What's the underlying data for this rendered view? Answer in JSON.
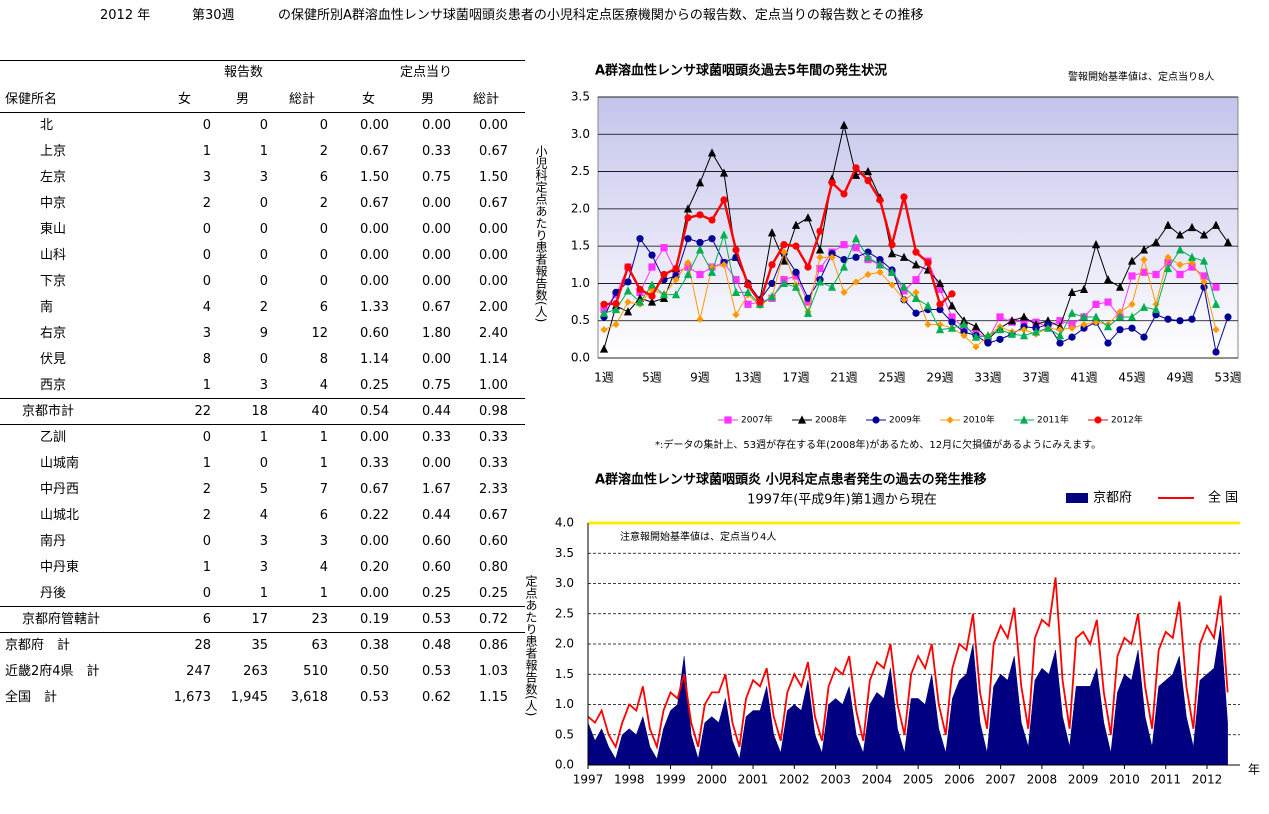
{
  "header": {
    "year": "2012 年",
    "week": "第30週",
    "title": "の保健所別A群溶血性レンサ球菌咽頭炎患者の小児科定点医療機関からの報告数、定点当りの報告数とその推移"
  },
  "table": {
    "group_headers": [
      "報告数",
      "定点当り"
    ],
    "columns": [
      "保健所名",
      "女",
      "男",
      "総計",
      "女",
      "男",
      "総計"
    ],
    "rows": [
      [
        "北",
        "0",
        "0",
        "0",
        "0.00",
        "0.00",
        "0.00"
      ],
      [
        "上京",
        "1",
        "1",
        "2",
        "0.67",
        "0.33",
        "0.67"
      ],
      [
        "左京",
        "3",
        "3",
        "6",
        "1.50",
        "0.75",
        "1.50"
      ],
      [
        "中京",
        "2",
        "0",
        "2",
        "0.67",
        "0.00",
        "0.67"
      ],
      [
        "東山",
        "0",
        "0",
        "0",
        "0.00",
        "0.00",
        "0.00"
      ],
      [
        "山科",
        "0",
        "0",
        "0",
        "0.00",
        "0.00",
        "0.00"
      ],
      [
        "下京",
        "0",
        "0",
        "0",
        "0.00",
        "0.00",
        "0.00"
      ],
      [
        "南",
        "4",
        "2",
        "6",
        "1.33",
        "0.67",
        "2.00"
      ],
      [
        "右京",
        "3",
        "9",
        "12",
        "0.60",
        "1.80",
        "2.40"
      ],
      [
        "伏見",
        "8",
        "0",
        "8",
        "1.14",
        "0.00",
        "1.14"
      ],
      [
        "西京",
        "1",
        "3",
        "4",
        "0.25",
        "0.75",
        "1.00"
      ],
      [
        "京都市計",
        "22",
        "18",
        "40",
        "0.54",
        "0.44",
        "0.98"
      ],
      [
        "乙訓",
        "0",
        "1",
        "1",
        "0.00",
        "0.33",
        "0.33"
      ],
      [
        "山城南",
        "1",
        "0",
        "1",
        "0.33",
        "0.00",
        "0.33"
      ],
      [
        "中丹西",
        "2",
        "5",
        "7",
        "0.67",
        "1.67",
        "2.33"
      ],
      [
        "山城北",
        "2",
        "4",
        "6",
        "0.22",
        "0.44",
        "0.67"
      ],
      [
        "南丹",
        "0",
        "3",
        "3",
        "0.00",
        "0.60",
        "0.60"
      ],
      [
        "中丹東",
        "1",
        "3",
        "4",
        "0.20",
        "0.60",
        "0.80"
      ],
      [
        "丹後",
        "0",
        "1",
        "1",
        "0.00",
        "0.25",
        "0.25"
      ],
      [
        "京都府管轄計",
        "6",
        "17",
        "23",
        "0.19",
        "0.53",
        "0.72"
      ],
      [
        "京都府　計",
        "28",
        "35",
        "63",
        "0.38",
        "0.48",
        "0.86"
      ],
      [
        "近畿2府4県　計",
        "247",
        "263",
        "510",
        "0.50",
        "0.53",
        "1.03"
      ],
      [
        "全国　計",
        "1,673",
        "1,945",
        "3,618",
        "0.53",
        "0.62",
        "1.15"
      ]
    ]
  },
  "chart_data": [
    {
      "type": "line",
      "title": "A群溶血性レンサ球菌咽頭炎過去5年間の発生状況",
      "annotation": "警報開始基準値は、定点当り8人",
      "ylabel": "小児科定点あたり患者報告数(人)",
      "footnote": "*:データの集計上、53週が存在する年(2008年)があるため、12月に欠損値があるようにみえます。",
      "categories": [
        "1週",
        null,
        null,
        null,
        "5週",
        null,
        null,
        null,
        "9週",
        null,
        null,
        null,
        "13週",
        null,
        null,
        null,
        "17週",
        null,
        null,
        null,
        "21週",
        null,
        null,
        null,
        "25週",
        null,
        null,
        null,
        "29週",
        null,
        null,
        null,
        "33週",
        null,
        null,
        null,
        "37週",
        null,
        null,
        null,
        "41週",
        null,
        null,
        null,
        "45週",
        null,
        null,
        null,
        "49週",
        null,
        null,
        null,
        "53週"
      ],
      "ylim": [
        0,
        3.5
      ],
      "yticks": [
        {
          "value": 0,
          "label": "0.0"
        },
        0.5,
        {
          "value": 1,
          "label": "1.0"
        },
        1.5,
        {
          "value": 2,
          "label": "2.0"
        },
        2.5,
        {
          "value": 3,
          "label": "3.0"
        },
        3.5
      ],
      "grid": true,
      "series": [
        {
          "name": "2007年",
          "color": "#ff33ff",
          "marker": "square",
          "values": [
            0.65,
            0.85,
            1.22,
            0.88,
            1.22,
            1.48,
            1.15,
            1.22,
            1.12,
            1.22,
            1.28,
            1.05,
            0.72,
            0.75,
            0.8,
            1.05,
            1.1,
            0.75,
            1.2,
            1.42,
            1.52,
            1.48,
            1.32,
            1.25,
            1.15,
            0.9,
            1.05,
            1.3,
            0.92,
            0.55,
            0.4,
            0.35,
            0.25,
            0.55,
            0.48,
            0.5,
            0.48,
            0.42,
            0.5,
            0.45,
            0.55,
            0.72,
            0.75,
            0.55,
            1.1,
            1.15,
            1.12,
            1.28,
            1.12,
            1.22,
            1.1,
            0.95,
            null
          ]
        },
        {
          "name": "2008年",
          "color": "#000000",
          "marker": "triangle",
          "values": [
            0.12,
            0.7,
            0.62,
            0.8,
            0.75,
            0.8,
            1.2,
            2.0,
            2.35,
            2.75,
            2.48,
            1.35,
            1.0,
            0.78,
            1.68,
            1.3,
            1.78,
            1.88,
            1.45,
            2.4,
            3.12,
            2.45,
            2.5,
            2.15,
            1.4,
            1.35,
            1.25,
            1.18,
            1.0,
            0.7,
            0.5,
            0.42,
            0.25,
            0.4,
            0.5,
            0.55,
            0.45,
            0.5,
            0.42,
            0.88,
            0.92,
            1.52,
            1.05,
            0.95,
            1.3,
            1.45,
            1.55,
            1.78,
            1.65,
            1.75,
            1.65,
            1.78,
            1.55
          ]
        },
        {
          "name": "2009年",
          "color": "#000099",
          "marker": "circle",
          "values": [
            0.55,
            0.88,
            1.02,
            1.6,
            1.38,
            1.05,
            1.1,
            1.6,
            1.55,
            1.6,
            1.28,
            1.35,
            1.0,
            0.78,
            1.0,
            1.4,
            1.15,
            0.8,
            1.05,
            1.4,
            1.32,
            1.35,
            1.42,
            1.32,
            1.18,
            0.78,
            0.6,
            0.65,
            0.65,
            0.48,
            0.35,
            0.3,
            0.2,
            0.25,
            0.32,
            0.42,
            0.4,
            0.45,
            0.2,
            0.28,
            0.4,
            0.48,
            0.2,
            0.38,
            0.4,
            0.28,
            0.58,
            0.52,
            0.5,
            0.52,
            0.95,
            0.08,
            0.55
          ]
        },
        {
          "name": "2010年",
          "color": "#ff9900",
          "marker": "diamond",
          "values": [
            0.38,
            0.45,
            0.75,
            0.72,
            0.92,
            0.85,
            1.05,
            1.28,
            0.52,
            1.22,
            1.25,
            0.58,
            0.85,
            0.7,
            0.82,
            1.42,
            0.98,
            0.62,
            1.35,
            1.35,
            0.88,
            1.02,
            1.12,
            1.15,
            0.98,
            0.78,
            0.88,
            0.45,
            0.45,
            0.4,
            0.3,
            0.15,
            0.3,
            0.42,
            0.35,
            0.38,
            0.32,
            0.4,
            0.38,
            0.4,
            0.45,
            0.48,
            0.45,
            0.62,
            0.72,
            1.32,
            0.72,
            1.35,
            1.25,
            1.28,
            1.02,
            0.38,
            null
          ]
        },
        {
          "name": "2011年",
          "color": "#00b050",
          "marker": "triangle",
          "values": [
            0.6,
            0.65,
            0.9,
            0.75,
            0.98,
            0.85,
            0.85,
            1.12,
            1.45,
            1.15,
            1.65,
            0.88,
            0.88,
            0.72,
            0.82,
            1.0,
            0.95,
            0.6,
            1.02,
            0.95,
            1.22,
            1.6,
            1.35,
            1.25,
            1.15,
            0.95,
            0.8,
            0.7,
            0.38,
            0.4,
            0.45,
            0.28,
            0.3,
            0.38,
            0.32,
            0.3,
            0.35,
            0.4,
            0.3,
            0.6,
            0.55,
            0.55,
            0.42,
            0.55,
            0.55,
            0.68,
            0.65,
            1.2,
            1.45,
            1.35,
            1.3,
            0.72,
            null
          ]
        },
        {
          "name": "2012年",
          "color": "#ff0000",
          "marker": "circle",
          "values": [
            0.72,
            0.73,
            1.22,
            0.92,
            0.83,
            1.12,
            1.2,
            1.88,
            1.92,
            1.85,
            2.12,
            1.45,
            0.98,
            0.75,
            1.25,
            1.52,
            1.5,
            1.22,
            1.7,
            2.35,
            2.2,
            2.55,
            2.38,
            2.12,
            1.52,
            2.16,
            1.42,
            1.28,
            0.72,
            0.86,
            null,
            null,
            null,
            null,
            null,
            null,
            null,
            null,
            null,
            null,
            null,
            null,
            null,
            null,
            null,
            null,
            null,
            null,
            null,
            null,
            null,
            null,
            null
          ]
        }
      ]
    },
    {
      "type": "area-line",
      "title": "A群溶血性レンサ球菌咽頭炎 小児科定点患者発生の過去の発生推移",
      "subtitle": "1997年(平成9年)第1週から現在",
      "annotation": "注意報開始基準値は、定点当り4人",
      "ylabel": "定点あたり患者報告数(人)",
      "xlabel": "年",
      "threshold": 4,
      "threshold_color": "#ffee00",
      "xlim": [
        1997,
        2012.8
      ],
      "xticks": [
        1997,
        1998,
        1999,
        2000,
        2001,
        2002,
        2003,
        2004,
        2005,
        2006,
        2007,
        2008,
        2009,
        2010,
        2011,
        2012
      ],
      "ylim": [
        0,
        4
      ],
      "yticks": [
        {
          "value": 0,
          "label": "0.0"
        },
        0.5,
        {
          "value": 1,
          "label": "1.0"
        },
        1.5,
        {
          "value": 2,
          "label": "2.0"
        },
        2.5,
        {
          "value": 3,
          "label": "3.0"
        },
        3.5,
        {
          "value": 4,
          "label": "4.0"
        }
      ],
      "grid": true,
      "x": [
        1997,
        1997.17,
        1997.33,
        1997.5,
        1997.67,
        1997.83,
        1998,
        1998.17,
        1998.33,
        1998.5,
        1998.67,
        1998.83,
        1999,
        1999.17,
        1999.33,
        1999.5,
        1999.67,
        1999.83,
        2000,
        2000.17,
        2000.33,
        2000.5,
        2000.67,
        2000.83,
        2001,
        2001.17,
        2001.33,
        2001.5,
        2001.67,
        2001.83,
        2002,
        2002.17,
        2002.33,
        2002.5,
        2002.67,
        2002.83,
        2003,
        2003.17,
        2003.33,
        2003.5,
        2003.67,
        2003.83,
        2004,
        2004.17,
        2004.33,
        2004.5,
        2004.67,
        2004.83,
        2005,
        2005.17,
        2005.33,
        2005.5,
        2005.67,
        2005.83,
        2006,
        2006.17,
        2006.33,
        2006.5,
        2006.67,
        2006.83,
        2007,
        2007.17,
        2007.33,
        2007.5,
        2007.67,
        2007.83,
        2008,
        2008.17,
        2008.33,
        2008.5,
        2008.67,
        2008.83,
        2009,
        2009.17,
        2009.33,
        2009.5,
        2009.67,
        2009.83,
        2010,
        2010.17,
        2010.33,
        2010.5,
        2010.67,
        2010.83,
        2011,
        2011.17,
        2011.33,
        2011.5,
        2011.67,
        2011.83,
        2012,
        2012.17,
        2012.33,
        2012.5
      ],
      "series": [
        {
          "name": "京都府",
          "color": "#000080",
          "style": "area",
          "values": [
            0.7,
            0.4,
            0.6,
            0.3,
            0.1,
            0.5,
            0.6,
            0.5,
            0.8,
            0.3,
            0.1,
            0.6,
            0.9,
            1.0,
            1.8,
            0.5,
            0.1,
            0.7,
            0.8,
            0.7,
            1.1,
            0.4,
            0.1,
            0.8,
            0.9,
            0.9,
            1.3,
            0.5,
            0.2,
            0.9,
            1.0,
            0.9,
            1.4,
            0.5,
            0.2,
            1.0,
            1.1,
            1.0,
            1.3,
            0.5,
            0.2,
            1.0,
            1.2,
            1.1,
            1.6,
            0.6,
            0.2,
            1.1,
            1.1,
            1.0,
            1.5,
            0.6,
            0.2,
            1.1,
            1.4,
            1.5,
            2.0,
            0.7,
            0.2,
            1.3,
            1.5,
            1.4,
            1.8,
            0.7,
            0.3,
            1.4,
            1.6,
            1.5,
            1.9,
            0.8,
            0.3,
            1.3,
            1.3,
            1.3,
            1.6,
            0.7,
            0.2,
            1.2,
            1.5,
            1.4,
            1.9,
            0.8,
            0.3,
            1.3,
            1.4,
            1.5,
            1.8,
            0.8,
            0.3,
            1.4,
            1.5,
            1.6,
            2.3,
            0.7
          ]
        },
        {
          "name": "全 国",
          "color": "#ff0000",
          "style": "line",
          "values": [
            0.8,
            0.7,
            0.9,
            0.5,
            0.3,
            0.7,
            1.0,
            0.9,
            1.3,
            0.6,
            0.3,
            0.9,
            1.2,
            1.1,
            1.5,
            0.7,
            0.3,
            1.0,
            1.2,
            1.2,
            1.5,
            0.7,
            0.3,
            1.1,
            1.4,
            1.3,
            1.6,
            0.8,
            0.4,
            1.2,
            1.5,
            1.3,
            1.7,
            0.8,
            0.4,
            1.3,
            1.6,
            1.5,
            1.8,
            0.9,
            0.4,
            1.4,
            1.7,
            1.6,
            2.0,
            1.0,
            0.5,
            1.5,
            1.8,
            1.6,
            2.0,
            1.0,
            0.5,
            1.6,
            2.0,
            1.9,
            2.5,
            1.2,
            0.6,
            2.0,
            2.3,
            2.1,
            2.6,
            1.3,
            0.6,
            2.1,
            2.4,
            2.3,
            3.1,
            1.4,
            0.6,
            2.1,
            2.2,
            2.0,
            2.4,
            1.2,
            0.5,
            1.8,
            2.1,
            2.0,
            2.5,
            1.3,
            0.6,
            1.9,
            2.2,
            2.1,
            2.7,
            1.3,
            0.6,
            2.0,
            2.3,
            2.1,
            2.8,
            1.2
          ]
        }
      ]
    }
  ]
}
